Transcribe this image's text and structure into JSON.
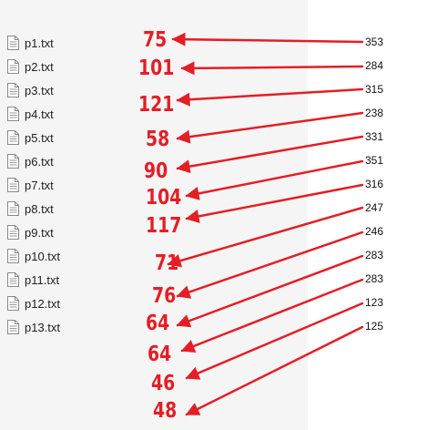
{
  "files": [
    {
      "name": "p1.txt"
    },
    {
      "name": "p2.txt"
    },
    {
      "name": "p3.txt"
    },
    {
      "name": "p4.txt"
    },
    {
      "name": "p5.txt"
    },
    {
      "name": "p6.txt"
    },
    {
      "name": "p7.txt"
    },
    {
      "name": "p8.txt"
    },
    {
      "name": "p9.txt"
    },
    {
      "name": "p10.txt"
    },
    {
      "name": "p11.txt"
    },
    {
      "name": "p12.txt"
    },
    {
      "name": "p13.txt"
    }
  ],
  "big_numbers": [
    "75",
    "101",
    "121",
    "58",
    "90",
    "104",
    "117",
    "71",
    "76",
    "64",
    "64",
    "46",
    "48"
  ],
  "small_numbers": [
    "353",
    "284",
    "315",
    "238",
    "331",
    "351",
    "316",
    "247",
    "246",
    "283",
    "283",
    "123",
    "125"
  ],
  "colors": {
    "annotation": "#e41e26",
    "panel": "#f5f5f5"
  }
}
